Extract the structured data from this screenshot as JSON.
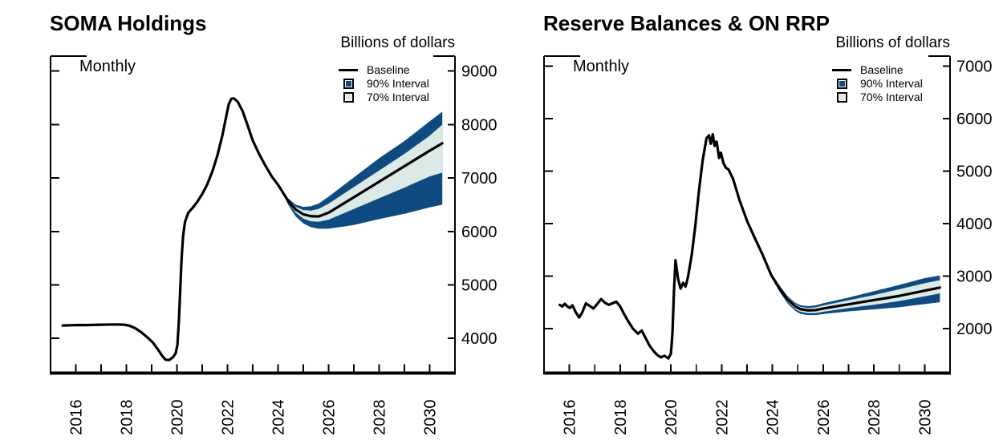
{
  "colors": {
    "baseline": "#000000",
    "interval90": "#0F4A80",
    "interval70": "#DBE9E7",
    "axis": "#000000",
    "background": "#FFFFFF"
  },
  "chart_data": [
    {
      "type": "line",
      "title": "SOMA Holdings",
      "units_label": "Billions of dollars",
      "frequency_label": "Monthly",
      "legend_position": "inside-top-right",
      "legend_items": [
        {
          "label": "Baseline",
          "symbol": "line",
          "color": "#000000"
        },
        {
          "label": "90% Interval",
          "symbol": "square",
          "color": "#0F4A80"
        },
        {
          "label": "70% Interval",
          "symbol": "square",
          "color": "#DBE9E7"
        }
      ],
      "xlim": [
        2015,
        2031
      ],
      "ylim": [
        3350,
        9280
      ],
      "yticks": [
        4000,
        5000,
        6000,
        7000,
        8000,
        9000
      ],
      "xtick_every": 1,
      "xticks_labeled": [
        2016,
        2018,
        2020,
        2022,
        2024,
        2026,
        2028,
        2030
      ],
      "grid": false,
      "series": [
        {
          "name": "Baseline (history)",
          "role": "history",
          "x": [
            2015.48,
            2015.8,
            2016.1,
            2016.4,
            2016.7,
            2017.0,
            2017.3,
            2017.6,
            2017.9,
            2018.1,
            2018.35,
            2018.6,
            2018.85,
            2019.05,
            2019.25,
            2019.42,
            2019.55,
            2019.7,
            2019.85,
            2019.95,
            2020.02,
            2020.08,
            2020.13,
            2020.18,
            2020.24,
            2020.32,
            2020.45,
            2020.6,
            2020.8,
            2021.0,
            2021.2,
            2021.4,
            2021.6,
            2021.8,
            2021.95,
            2022.05,
            2022.15,
            2022.25,
            2022.4,
            2022.6,
            2022.8,
            2023.0,
            2023.25,
            2023.5,
            2023.75,
            2024.0,
            2024.1
          ],
          "y": [
            4240,
            4245,
            4250,
            4248,
            4252,
            4255,
            4258,
            4260,
            4255,
            4240,
            4190,
            4110,
            4010,
            3920,
            3790,
            3670,
            3600,
            3595,
            3650,
            3720,
            3880,
            4350,
            4900,
            5450,
            5900,
            6180,
            6350,
            6430,
            6550,
            6700,
            6880,
            7120,
            7420,
            7800,
            8150,
            8380,
            8480,
            8490,
            8430,
            8250,
            7980,
            7700,
            7450,
            7230,
            7030,
            6870,
            6800
          ]
        },
        {
          "name": "Baseline (projection)",
          "role": "forecast",
          "x": [
            2024.1,
            2024.4,
            2024.7,
            2025.0,
            2025.3,
            2025.6,
            2026.0,
            2027.0,
            2028.0,
            2029.0,
            2030.0,
            2030.5
          ],
          "y": [
            6800,
            6570,
            6410,
            6320,
            6285,
            6280,
            6350,
            6640,
            6930,
            7220,
            7510,
            7650
          ]
        }
      ],
      "bands": [
        {
          "name": "90% Interval",
          "role": "band90",
          "x": [
            2024.1,
            2024.4,
            2024.7,
            2025.0,
            2025.3,
            2025.6,
            2026.0,
            2027.0,
            2028.0,
            2029.0,
            2030.0,
            2030.5
          ],
          "upper": [
            6800,
            6620,
            6500,
            6460,
            6470,
            6520,
            6650,
            7010,
            7370,
            7690,
            8060,
            8240
          ],
          "lower": [
            6800,
            6500,
            6280,
            6150,
            6080,
            6050,
            6050,
            6120,
            6230,
            6330,
            6450,
            6500
          ]
        },
        {
          "name": "70% Interval",
          "role": "band70",
          "x": [
            2024.1,
            2024.4,
            2024.7,
            2025.0,
            2025.3,
            2025.6,
            2026.0,
            2027.0,
            2028.0,
            2029.0,
            2030.0,
            2030.5
          ],
          "upper": [
            6800,
            6600,
            6460,
            6400,
            6390,
            6420,
            6520,
            6830,
            7140,
            7450,
            7790,
            8000
          ],
          "lower": [
            6800,
            6540,
            6350,
            6240,
            6190,
            6180,
            6220,
            6420,
            6620,
            6820,
            7030,
            7100
          ]
        }
      ]
    },
    {
      "type": "line",
      "title": "Reserve Balances & ON RRP",
      "units_label": "Billions of dollars",
      "frequency_label": "Monthly",
      "legend_position": "inside-top-right",
      "legend_items": [
        {
          "label": "Baseline",
          "symbol": "line",
          "color": "#000000"
        },
        {
          "label": "90% Interval",
          "symbol": "square",
          "color": "#0F4A80"
        },
        {
          "label": "70% Interval",
          "symbol": "square",
          "color": "#DBE9E7"
        }
      ],
      "xlim": [
        2015,
        2031
      ],
      "ylim": [
        1150,
        7190
      ],
      "yticks": [
        2000,
        3000,
        4000,
        5000,
        6000,
        7000
      ],
      "xtick_every": 1,
      "xticks_labeled": [
        2016,
        2018,
        2020,
        2022,
        2024,
        2026,
        2028,
        2030
      ],
      "grid": false,
      "series": [
        {
          "name": "Baseline (history)",
          "role": "history",
          "x": [
            2015.62,
            2015.72,
            2015.82,
            2015.92,
            2016.02,
            2016.12,
            2016.25,
            2016.38,
            2016.5,
            2016.65,
            2016.8,
            2016.95,
            2017.1,
            2017.25,
            2017.4,
            2017.55,
            2017.7,
            2017.85,
            2018.0,
            2018.15,
            2018.3,
            2018.5,
            2018.7,
            2018.85,
            2019.0,
            2019.15,
            2019.3,
            2019.45,
            2019.6,
            2019.75,
            2019.9,
            2020.0,
            2020.06,
            2020.12,
            2020.18,
            2020.28,
            2020.38,
            2020.48,
            2020.58,
            2020.68,
            2020.82,
            2020.96,
            2021.1,
            2021.25,
            2021.4,
            2021.5,
            2021.57,
            2021.65,
            2021.72,
            2021.8,
            2021.9,
            2021.97,
            2022.07,
            2022.17,
            2022.27,
            2022.45,
            2022.7,
            2023.0,
            2023.3,
            2023.6,
            2023.95,
            2024.3,
            2024.6,
            2024.9,
            2025.1
          ],
          "y": [
            2450,
            2420,
            2470,
            2420,
            2390,
            2440,
            2310,
            2210,
            2300,
            2480,
            2430,
            2380,
            2470,
            2560,
            2490,
            2450,
            2480,
            2510,
            2420,
            2280,
            2150,
            2000,
            1900,
            1960,
            1820,
            1680,
            1580,
            1500,
            1450,
            1480,
            1430,
            1520,
            1900,
            2700,
            3300,
            2950,
            2760,
            2870,
            2800,
            3000,
            3400,
            3950,
            4600,
            5200,
            5620,
            5680,
            5520,
            5700,
            5480,
            5560,
            5250,
            5350,
            5150,
            5060,
            5030,
            4850,
            4450,
            4050,
            3730,
            3420,
            3020,
            2750,
            2550,
            2420,
            2370
          ]
        },
        {
          "name": "Baseline (projection)",
          "role": "forecast",
          "x": [
            2025.1,
            2025.4,
            2025.7,
            2026.0,
            2026.5,
            2027.0,
            2027.5,
            2028.0,
            2028.5,
            2029.0,
            2029.5,
            2030.0,
            2030.6
          ],
          "y": [
            2370,
            2345,
            2350,
            2380,
            2420,
            2460,
            2500,
            2540,
            2580,
            2620,
            2670,
            2720,
            2780
          ]
        }
      ],
      "bands": [
        {
          "name": "90% Interval",
          "role": "band90",
          "x": [
            2023.3,
            2023.6,
            2023.95,
            2024.3,
            2024.6,
            2024.9,
            2025.1,
            2025.4,
            2025.7,
            2026.0,
            2027.0,
            2028.0,
            2029.0,
            2030.0,
            2030.6
          ],
          "upper": [
            3745,
            3445,
            3060,
            2805,
            2615,
            2490,
            2445,
            2425,
            2440,
            2480,
            2590,
            2710,
            2830,
            2960,
            3010
          ],
          "lower": [
            3715,
            3395,
            2975,
            2685,
            2475,
            2335,
            2280,
            2255,
            2255,
            2275,
            2325,
            2365,
            2405,
            2465,
            2500
          ]
        },
        {
          "name": "70% Interval",
          "role": "band70",
          "x": [
            2023.3,
            2023.6,
            2023.95,
            2024.3,
            2024.6,
            2024.9,
            2025.1,
            2025.4,
            2025.7,
            2026.0,
            2027.0,
            2028.0,
            2029.0,
            2030.0,
            2030.6
          ],
          "upper": [
            3738,
            3433,
            3040,
            2780,
            2590,
            2460,
            2412,
            2390,
            2402,
            2438,
            2538,
            2638,
            2748,
            2862,
            2920
          ],
          "lower": [
            3722,
            3407,
            2995,
            2715,
            2505,
            2368,
            2318,
            2292,
            2292,
            2318,
            2388,
            2452,
            2522,
            2612,
            2670
          ]
        }
      ]
    }
  ]
}
